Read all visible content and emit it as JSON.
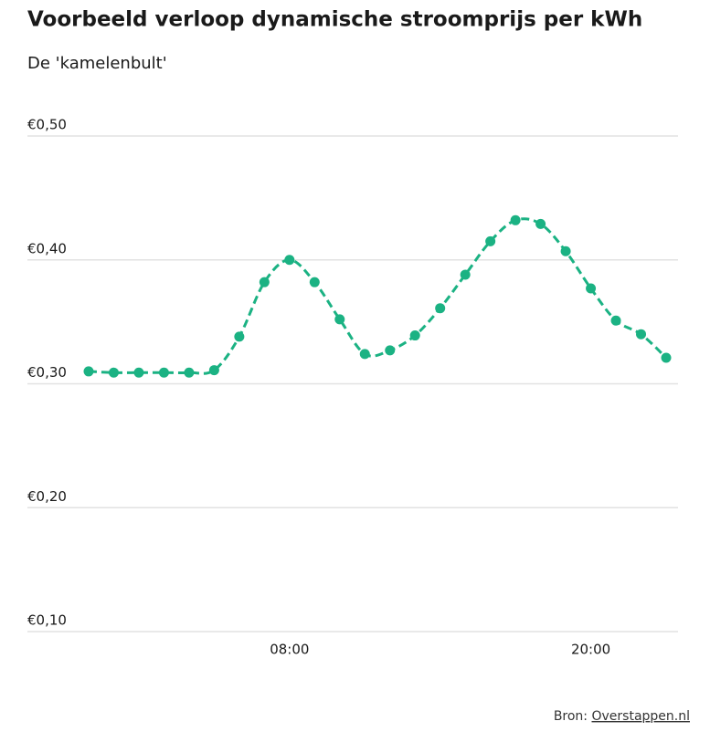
{
  "chart_data": {
    "type": "line",
    "title": "Voorbeeld verloop dynamische stroomprijs per kWh",
    "subtitle": "De 'kamelenbult'",
    "categories": [
      null,
      null,
      null,
      null,
      null,
      null,
      null,
      null,
      "08:00",
      null,
      null,
      null,
      null,
      null,
      null,
      null,
      null,
      null,
      null,
      null,
      "20:00",
      null,
      null,
      null
    ],
    "series": [
      {
        "name": "Stroomprijs",
        "color": "#1bb283",
        "values": [
          0.31,
          0.309,
          0.309,
          0.309,
          0.309,
          0.311,
          0.338,
          0.382,
          0.4,
          0.382,
          0.352,
          0.324,
          0.327,
          0.339,
          0.361,
          0.388,
          0.415,
          0.432,
          0.429,
          0.407,
          0.377,
          0.351,
          0.34,
          0.321
        ]
      }
    ],
    "ylim": [
      0.1,
      0.5
    ],
    "yticks": [
      {
        "value": 0.1,
        "label": "€0,10"
      },
      {
        "value": 0.2,
        "label": "€0,20"
      },
      {
        "value": 0.3,
        "label": "€0,30"
      },
      {
        "value": 0.4,
        "label": "€0,40"
      },
      {
        "value": 0.5,
        "label": "€0,50"
      }
    ],
    "grid": true,
    "source_prefix": "Bron:",
    "source_link": "Overstappen.nl"
  }
}
